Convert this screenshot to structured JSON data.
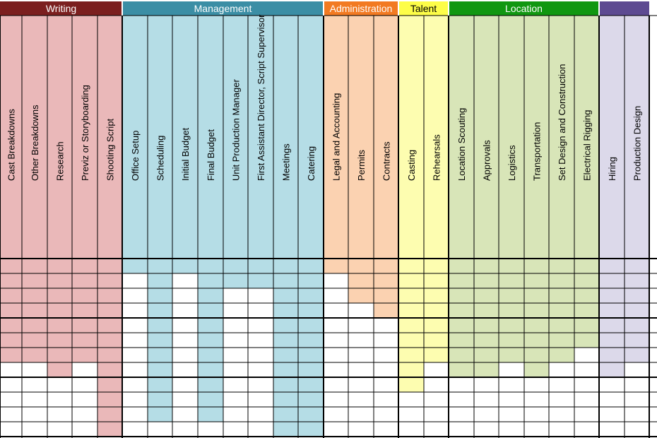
{
  "categories": [
    {
      "name": "Writing",
      "color": "#eab8b9",
      "header_color": "#7b1f1f",
      "text_color": "#ffffff",
      "columns": [
        "Cast Breakdowns",
        "Other Breakdowns",
        "Research",
        "Previz or Storyboarding",
        "Shooting Script"
      ],
      "filled_rows": [
        7,
        7,
        8,
        7,
        12
      ]
    },
    {
      "name": "Management",
      "color": "#b5dde6",
      "header_color": "#3b8ea5",
      "text_color": "#ffffff",
      "columns": [
        "Office Setup",
        "Scheduling",
        "Initial Budget",
        "Final Budget",
        "Unit Production Manager",
        "First Assistant Director, Script Supervisor",
        "Meetings",
        "Catering"
      ],
      "filled_rows": [
        1,
        11,
        1,
        11,
        2,
        2,
        12,
        13
      ]
    },
    {
      "name": "Administration",
      "color": "#fbd2b1",
      "header_color": "#f27a22",
      "text_color": "#ffffff",
      "columns": [
        "Legal and Accounting",
        "Permits",
        "Contracts"
      ],
      "filled_rows": [
        1,
        3,
        4
      ]
    },
    {
      "name": "Talent",
      "color": "#fdfdb0",
      "header_color": "#fdfd48",
      "text_color": "#000000",
      "columns": [
        "Casting",
        "Rehearsals"
      ],
      "filled_rows": [
        9,
        7
      ]
    },
    {
      "name": "Location",
      "color": "#d8e5b8",
      "header_color": "#119711",
      "text_color": "#ffffff",
      "columns": [
        "Location Scouting",
        "Approvals",
        "Logistics",
        "Transportation",
        "Set Design and Construction",
        "Electrical Rigging"
      ],
      "filled_rows": [
        8,
        8,
        7,
        8,
        7,
        6
      ]
    },
    {
      "name": "",
      "color": "#dcd9ea",
      "header_color": "#5d4a91",
      "text_color": "#ffffff",
      "columns": [
        "Hiring",
        "Production Design"
      ],
      "filled_rows": [
        8,
        7
      ]
    }
  ]
}
